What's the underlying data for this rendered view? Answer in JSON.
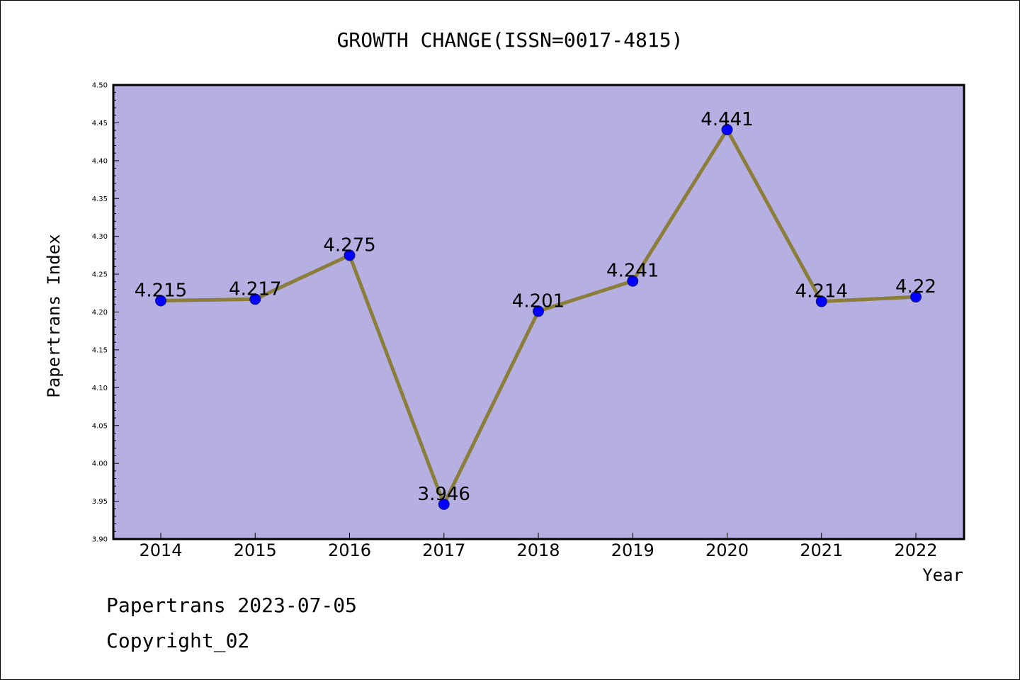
{
  "chart_data": {
    "type": "line",
    "title": "GROWTH CHANGE(ISSN=0017-4815)",
    "xlabel": "Year",
    "ylabel": "Papertrans Index",
    "categories": [
      "2014",
      "2015",
      "2016",
      "2017",
      "2018",
      "2019",
      "2020",
      "2021",
      "2022"
    ],
    "values": [
      4.215,
      4.217,
      4.275,
      3.946,
      4.201,
      4.241,
      4.441,
      4.214,
      4.22
    ],
    "data_labels": [
      "4.215",
      "4.217",
      "4.275",
      "3.946",
      "4.201",
      "4.241",
      "4.441",
      "4.214",
      "4.22"
    ],
    "ylim": [
      3.9,
      4.5
    ],
    "yticks": [
      "3.90",
      "3.95",
      "4.00",
      "4.05",
      "4.10",
      "4.15",
      "4.20",
      "4.25",
      "4.30",
      "4.35",
      "4.40",
      "4.45",
      "4.50"
    ],
    "grid": false,
    "legend": "none",
    "colors": {
      "plot_background": "#b5afe2",
      "line": "#8b7d3a",
      "marker": "#0000ff"
    }
  },
  "footer": {
    "line1": "Papertrans 2023-07-05",
    "line2": "Copyright_02"
  }
}
